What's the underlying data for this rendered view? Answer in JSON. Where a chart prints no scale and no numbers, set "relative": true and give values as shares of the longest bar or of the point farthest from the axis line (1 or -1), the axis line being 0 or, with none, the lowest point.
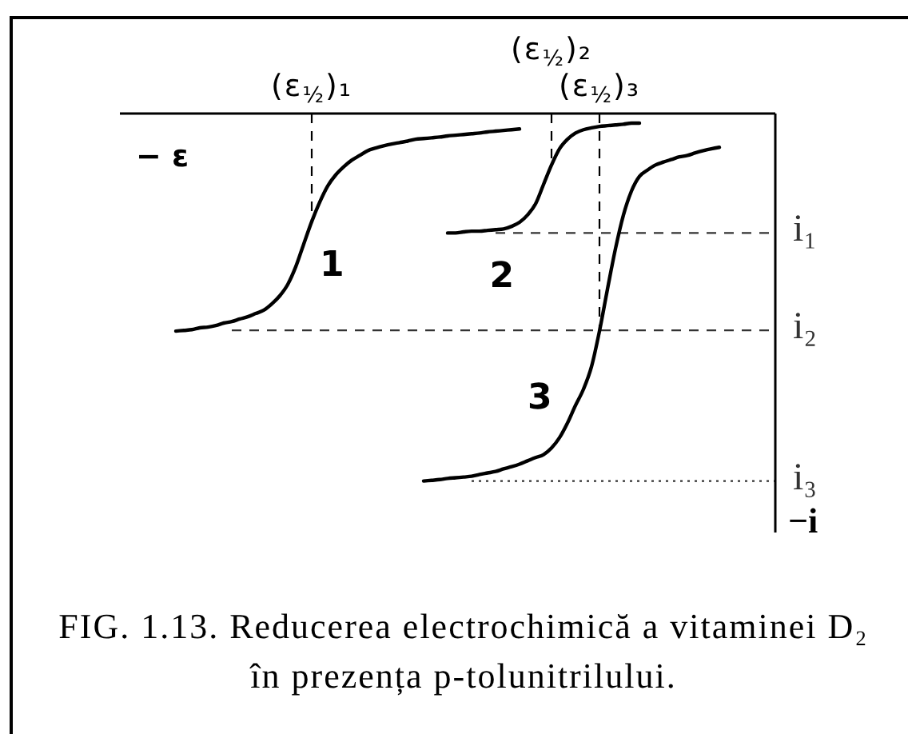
{
  "chart_data": {
    "type": "line",
    "relative": true,
    "categories": [
      null,
      null,
      null,
      null,
      null,
      null,
      null,
      null,
      null,
      null,
      null,
      null,
      null,
      null,
      null,
      null,
      null,
      null,
      null,
      null,
      null,
      null,
      null,
      null,
      "(ε$_{½}$)₁",
      null,
      null,
      null,
      null,
      null,
      null,
      null,
      null,
      null,
      null,
      null,
      null,
      null,
      null,
      null,
      null,
      null,
      null,
      null,
      null,
      null,
      null,
      null,
      null,
      null,
      null,
      null,
      null,
      null,
      "(ε$_{½}$)₂",
      null,
      null,
      null,
      null,
      null,
      "(ε$_{½}$)₃",
      null,
      null,
      null,
      null,
      null,
      null,
      null,
      null,
      null,
      null,
      null,
      null,
      null,
      null,
      null,
      null,
      null,
      null,
      null,
      null,
      null,
      null
    ],
    "series": [
      {
        "name": "1",
        "color": "#000000",
        "values": [
          null,
          null,
          null,
          null,
          null,
          null,
          null,
          -0.592,
          -0.59,
          -0.588,
          -0.583,
          -0.581,
          -0.577,
          -0.57,
          -0.566,
          -0.559,
          -0.553,
          -0.544,
          -0.535,
          -0.518,
          -0.496,
          -0.465,
          -0.417,
          -0.355,
          -0.294,
          -0.241,
          -0.197,
          -0.167,
          -0.145,
          -0.127,
          -0.114,
          -0.101,
          -0.094,
          -0.088,
          -0.083,
          -0.079,
          -0.075,
          -0.07,
          -0.068,
          -0.066,
          -0.064,
          -0.061,
          -0.059,
          -0.057,
          -0.055,
          -0.053,
          -0.05,
          -0.048,
          -0.046,
          -0.044,
          -0.042,
          null,
          null,
          null,
          null,
          null,
          null,
          null,
          null,
          null,
          null,
          null,
          null,
          null,
          null,
          null,
          null,
          null,
          null,
          null,
          null,
          null,
          null,
          null,
          null,
          null,
          null,
          null,
          null,
          null,
          null,
          null,
          null
        ]
      },
      {
        "name": "2",
        "color": "#000000",
        "values": [
          null,
          null,
          null,
          null,
          null,
          null,
          null,
          null,
          null,
          null,
          null,
          null,
          null,
          null,
          null,
          null,
          null,
          null,
          null,
          null,
          null,
          null,
          null,
          null,
          null,
          null,
          null,
          null,
          null,
          null,
          null,
          null,
          null,
          null,
          null,
          null,
          null,
          null,
          null,
          null,
          null,
          -0.325,
          -0.325,
          -0.322,
          -0.32,
          -0.32,
          -0.318,
          -0.316,
          -0.314,
          -0.307,
          -0.296,
          -0.276,
          -0.246,
          -0.193,
          -0.14,
          -0.096,
          -0.07,
          -0.053,
          -0.044,
          -0.039,
          -0.035,
          -0.033,
          -0.031,
          -0.029,
          -0.026,
          -0.026,
          null,
          null,
          null,
          null,
          null,
          null,
          null,
          null,
          null,
          null,
          null,
          null,
          null,
          null,
          null,
          null,
          null
        ]
      },
      {
        "name": "3",
        "color": "#000000",
        "values": [
          null,
          null,
          null,
          null,
          null,
          null,
          null,
          null,
          null,
          null,
          null,
          null,
          null,
          null,
          null,
          null,
          null,
          null,
          null,
          null,
          null,
          null,
          null,
          null,
          null,
          null,
          null,
          null,
          null,
          null,
          null,
          null,
          null,
          null,
          null,
          null,
          null,
          null,
          -1,
          -0.998,
          -0.996,
          -0.993,
          -0.991,
          -0.989,
          -0.987,
          -0.982,
          -0.978,
          -0.974,
          -0.967,
          -0.961,
          -0.954,
          -0.945,
          -0.936,
          -0.928,
          -0.91,
          -0.882,
          -0.842,
          -0.794,
          -0.75,
          -0.689,
          -0.592,
          -0.478,
          -0.368,
          -0.276,
          -0.211,
          -0.171,
          -0.154,
          -0.14,
          -0.132,
          -0.125,
          -0.118,
          -0.114,
          -0.107,
          -0.101,
          -0.096,
          -0.092,
          null,
          null,
          null,
          null,
          null,
          null,
          null
        ]
      },
      {
        "name": "i₁",
        "color": "#333333",
        "line_style": "dashed",
        "values": [
          null,
          null,
          null,
          null,
          null,
          null,
          null,
          null,
          null,
          null,
          null,
          null,
          null,
          null,
          null,
          null,
          null,
          null,
          null,
          null,
          null,
          null,
          null,
          null,
          null,
          null,
          null,
          null,
          null,
          null,
          null,
          null,
          null,
          null,
          null,
          null,
          null,
          null,
          null,
          null,
          null,
          null,
          null,
          null,
          null,
          null,
          null,
          -0.325,
          -0.325,
          -0.325,
          -0.325,
          -0.325,
          -0.325,
          -0.325,
          -0.325,
          -0.325,
          -0.325,
          -0.325,
          -0.325,
          -0.325,
          -0.325,
          -0.325,
          -0.325,
          -0.325,
          -0.325,
          -0.325,
          -0.325,
          -0.325,
          -0.325,
          -0.325,
          -0.325,
          -0.325,
          -0.325,
          -0.325,
          -0.325,
          -0.325,
          -0.325,
          -0.325,
          -0.325,
          -0.325,
          -0.325,
          -0.325,
          -0.325
        ]
      },
      {
        "name": "i₂",
        "color": "#333333",
        "line_style": "dashed",
        "values": [
          null,
          null,
          null,
          null,
          null,
          null,
          null,
          null,
          null,
          null,
          null,
          null,
          null,
          null,
          -0.59,
          -0.59,
          -0.59,
          -0.59,
          -0.59,
          -0.59,
          -0.59,
          -0.59,
          -0.59,
          -0.59,
          -0.59,
          -0.59,
          -0.59,
          -0.59,
          -0.59,
          -0.59,
          -0.59,
          -0.59,
          -0.59,
          -0.59,
          -0.59,
          -0.59,
          -0.59,
          -0.59,
          -0.59,
          -0.59,
          -0.59,
          -0.59,
          -0.59,
          -0.59,
          -0.59,
          -0.59,
          -0.59,
          -0.59,
          -0.59,
          -0.59,
          -0.59,
          -0.59,
          -0.59,
          -0.59,
          -0.59,
          -0.59,
          -0.59,
          -0.59,
          -0.59,
          -0.59,
          -0.59,
          -0.59,
          -0.59,
          -0.59,
          -0.59,
          -0.59,
          -0.59,
          -0.59,
          -0.59,
          -0.59,
          -0.59,
          -0.59,
          -0.59,
          -0.59,
          -0.59,
          -0.59,
          -0.59,
          -0.59,
          -0.59,
          -0.59,
          -0.59,
          -0.59,
          -0.59
        ]
      },
      {
        "name": "i₃",
        "color": "#333333",
        "line_style": "dotted",
        "values": [
          null,
          null,
          null,
          null,
          null,
          null,
          null,
          null,
          null,
          null,
          null,
          null,
          null,
          null,
          null,
          null,
          null,
          null,
          null,
          null,
          null,
          null,
          null,
          null,
          null,
          null,
          null,
          null,
          null,
          null,
          null,
          null,
          null,
          null,
          null,
          null,
          null,
          null,
          null,
          null,
          null,
          null,
          null,
          null,
          -1,
          -1,
          -1,
          -1,
          -1,
          -1,
          -1,
          -1,
          -1,
          -1,
          -1,
          -1,
          -1,
          -1,
          -1,
          -1,
          -1,
          -1,
          -1,
          -1,
          -1,
          -1,
          -1,
          -1,
          -1,
          -1,
          -1,
          -1,
          -1,
          -1,
          -1,
          -1,
          -1,
          -1,
          -1,
          -1,
          -1,
          -1,
          -1
        ]
      }
    ],
    "xlabel": "− ε",
    "ylabel": "−i",
    "ref_lines": [
      {
        "axis": "x",
        "value": "(ε$_{½}$)₁",
        "line_style": "dashed"
      },
      {
        "axis": "x",
        "value": "(ε$_{½}$)₂",
        "line_style": "dashed"
      },
      {
        "axis": "x",
        "value": "(ε$_{½}$)₃",
        "line_style": "dashed"
      }
    ],
    "annotations": [
      "FIG. 1.13. Reducerea electrochimică a vitaminei D₂ în prezența p-tolunitrilului."
    ]
  }
}
